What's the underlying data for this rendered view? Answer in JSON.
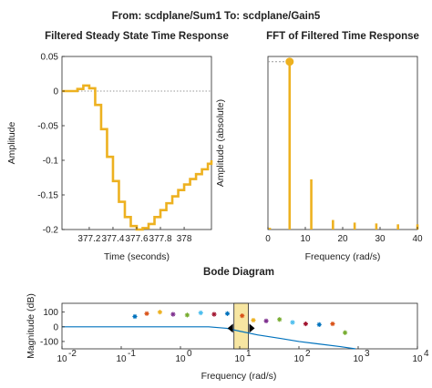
{
  "figure_title": "From: scdplane/Sum1  To: scdplane/Gain5",
  "colors": {
    "primary": "#EDB120",
    "bode_line": "#0072BD",
    "axis": "#262626",
    "highlight": "#F7E6A2",
    "marker": "#000000",
    "gridline": "#9a9a9a"
  },
  "chart_data": [
    {
      "type": "line",
      "title": "Filtered Steady State Time Response",
      "xlabel": "Time (seconds)",
      "ylabel": "Amplitude",
      "xlim": [
        376.97,
        378.23
      ],
      "ylim": [
        -0.2,
        0.05
      ],
      "xticks": [
        377.2,
        377.4,
        377.6,
        377.8,
        378
      ],
      "xtick_labels": [
        "377.2",
        "377.4",
        "377.6",
        "377.8",
        "378"
      ],
      "yticks": [
        0.05,
        0,
        -0.05,
        -0.1,
        -0.15,
        -0.2
      ],
      "ytick_labels": [
        "0.05",
        "0",
        "-0.05",
        "-0.1",
        "-0.15",
        "-0.2"
      ],
      "reference_line": 0,
      "series": [
        {
          "x": [
            376.97,
            377.0,
            377.05,
            377.1,
            377.15,
            377.2,
            377.25,
            377.3,
            377.35,
            377.4,
            377.45,
            377.5,
            377.55,
            377.6,
            377.65,
            377.7,
            377.75,
            377.8,
            377.85,
            377.9,
            377.95,
            378.0,
            378.05,
            378.1,
            378.15,
            378.2,
            378.23
          ],
          "y": [
            0.0,
            0.0,
            0.0,
            0.003,
            0.008,
            0.004,
            -0.02,
            -0.055,
            -0.095,
            -0.13,
            -0.16,
            -0.182,
            -0.195,
            -0.2,
            -0.198,
            -0.192,
            -0.182,
            -0.172,
            -0.162,
            -0.152,
            -0.143,
            -0.135,
            -0.127,
            -0.12,
            -0.113,
            -0.105,
            -0.1
          ]
        }
      ]
    },
    {
      "type": "bar",
      "title": "FFT of Filtered Time Response",
      "xlabel": "Frequency (rad/s)",
      "ylabel": "Amplitude (absolute)",
      "xlim": [
        0,
        40
      ],
      "ylim": [
        0,
        0.1
      ],
      "xticks": [
        0,
        10,
        20,
        30,
        40
      ],
      "xtick_labels": [
        "0",
        "10",
        "20",
        "30",
        "40"
      ],
      "x": [
        0.5,
        5.8,
        11.6,
        17.4,
        23.2,
        29.0,
        34.8,
        40.0
      ],
      "values": [
        0.001,
        0.097,
        0.029,
        0.0055,
        0.004,
        0.0035,
        0.003,
        0.003
      ],
      "marked_index": 1
    },
    {
      "type": "line",
      "title": "Bode Diagram",
      "xlabel": "Frequency (rad/s)",
      "ylabel": "Magnitude (dB)",
      "xscale": "log",
      "xlim": [
        0.01,
        10000
      ],
      "ylim": [
        -150,
        160
      ],
      "xticks": [
        0.01,
        0.1,
        1,
        10,
        100,
        1000,
        10000
      ],
      "xtick_labels": [
        "10",
        "10",
        "10",
        "10",
        "10",
        "10",
        "10"
      ],
      "xtick_exponents": [
        "-2",
        "-1",
        "0",
        "1",
        "2",
        "3",
        "4"
      ],
      "yticks": [
        100,
        0,
        -100
      ],
      "ytick_labels": [
        "100",
        "0",
        "-100"
      ],
      "series": [
        {
          "x": [
            0.01,
            0.1,
            1,
            3,
            6,
            10,
            20,
            50,
            100,
            200,
            500,
            900
          ],
          "y": [
            0,
            0,
            0,
            0,
            -10,
            -30,
            -55,
            -80,
            -100,
            -115,
            -135,
            -150
          ]
        }
      ],
      "scatter": {
        "x": [
          0.17,
          0.27,
          0.45,
          0.75,
          1.3,
          2.2,
          3.7,
          6.2,
          11,
          17,
          28,
          47,
          78,
          130,
          220,
          370,
          600
        ],
        "y": [
          70,
          90,
          100,
          85,
          80,
          95,
          85,
          90,
          75,
          45,
          40,
          50,
          30,
          20,
          15,
          20,
          -40
        ],
        "colors": [
          "#0072BD",
          "#D95319",
          "#EDB120",
          "#7E2F8E",
          "#77AC30",
          "#4DBEEE",
          "#A2142F",
          "#0072BD",
          "#D95319",
          "#EDB120",
          "#7E2F8E",
          "#77AC30",
          "#4DBEEE",
          "#A2142F",
          "#0072BD",
          "#D95319",
          "#77AC30"
        ]
      },
      "highlight_band": [
        8,
        14
      ]
    }
  ]
}
